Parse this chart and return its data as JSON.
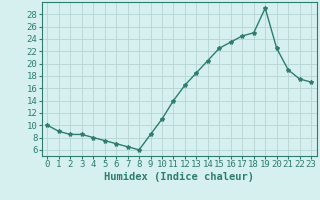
{
  "x": [
    0,
    1,
    2,
    3,
    4,
    5,
    6,
    7,
    8,
    9,
    10,
    11,
    12,
    13,
    14,
    15,
    16,
    17,
    18,
    19,
    20,
    21,
    22,
    23
  ],
  "y": [
    10,
    9,
    8.5,
    8.5,
    8,
    7.5,
    7,
    6.5,
    6,
    8.5,
    11,
    14,
    16.5,
    18.5,
    20.5,
    22.5,
    23.5,
    24.5,
    25,
    29,
    22.5,
    19,
    17.5,
    17
  ],
  "line_color": "#2e7d6e",
  "marker": "*",
  "marker_size": 3,
  "bg_color": "#d6f0ef",
  "grid_color": "#b5d5d2",
  "xlabel": "Humidex (Indice chaleur)",
  "ylim": [
    5,
    30
  ],
  "yticks": [
    6,
    8,
    10,
    12,
    14,
    16,
    18,
    20,
    22,
    24,
    26,
    28
  ],
  "xlim": [
    -0.5,
    23.5
  ],
  "xticks": [
    0,
    1,
    2,
    3,
    4,
    5,
    6,
    7,
    8,
    9,
    10,
    11,
    12,
    13,
    14,
    15,
    16,
    17,
    18,
    19,
    20,
    21,
    22,
    23
  ],
  "xlabel_fontsize": 7.5,
  "tick_fontsize": 6.5,
  "line_width": 1.0
}
